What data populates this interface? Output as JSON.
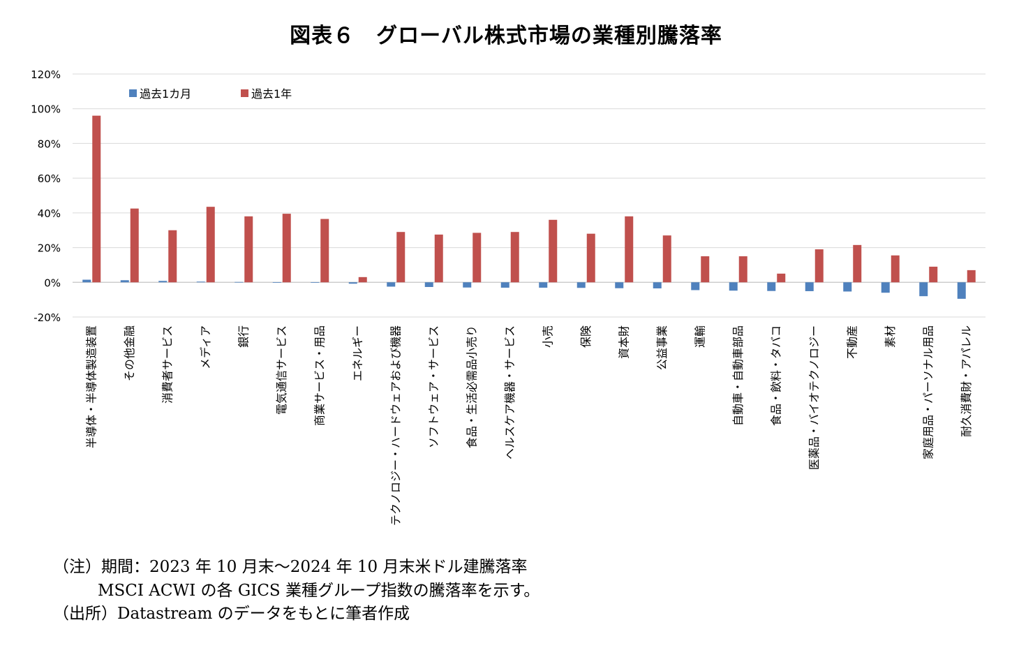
{
  "chart_data": {
    "type": "bar",
    "title": "図表６　グローバル株式市場の業種別騰落率",
    "categories": [
      "半導体・半導体製造装置",
      "その他金融",
      "消費者サービス",
      "メディア",
      "銀行",
      "電気通信サービス",
      "商業サービス・用品",
      "エネルギー",
      "テクノロジー・ハードウェアおよび機器",
      "ソフトウェア・サービス",
      "食品・生活必需品小売り",
      "ヘルスケア機器・サービス",
      "小売",
      "保険",
      "資本財",
      "公益事業",
      "運輸",
      "自動車・自動車部品",
      "食品・飲料・タバコ",
      "医薬品・バイオテクノロジー",
      "不動産",
      "素材",
      "家庭用品・パーソナル用品",
      "耐久消費財・アパレル"
    ],
    "series": [
      {
        "name": "過去1カ月",
        "color": "#4f81bd",
        "values": [
          1.5,
          1.2,
          0.8,
          0.4,
          0.2,
          0.1,
          0.1,
          -0.8,
          -2.5,
          -2.7,
          -3.0,
          -3.1,
          -3.1,
          -3.2,
          -3.4,
          -3.5,
          -4.5,
          -4.8,
          -5.0,
          -5.1,
          -5.3,
          -6.0,
          -8.0,
          -9.5
        ]
      },
      {
        "name": "過去1年",
        "color": "#c0504d",
        "values": [
          96,
          42.5,
          30,
          43.5,
          38,
          39.5,
          36.5,
          3,
          29,
          27.5,
          28.5,
          29,
          36,
          28,
          38,
          27,
          15,
          15,
          5,
          19,
          21.5,
          15.5,
          9,
          7
        ]
      }
    ],
    "ylim": [
      -20,
      120
    ],
    "yticks": [
      "-20%",
      "0%",
      "20%",
      "40%",
      "60%",
      "80%",
      "100%",
      "120%"
    ],
    "ytick_values": [
      -20,
      0,
      20,
      40,
      60,
      80,
      100,
      120
    ],
    "xlabel": "",
    "ylabel": "",
    "grid": true,
    "legend_position": "top-left"
  },
  "notes": [
    "（注）期間：2023 年 10 月末～2024 年 10 月末米ドル建騰落率",
    "MSCI ACWI の各 GICS 業種グループ指数の騰落率を示す。",
    "（出所）Datastream のデータをもとに筆者作成"
  ]
}
